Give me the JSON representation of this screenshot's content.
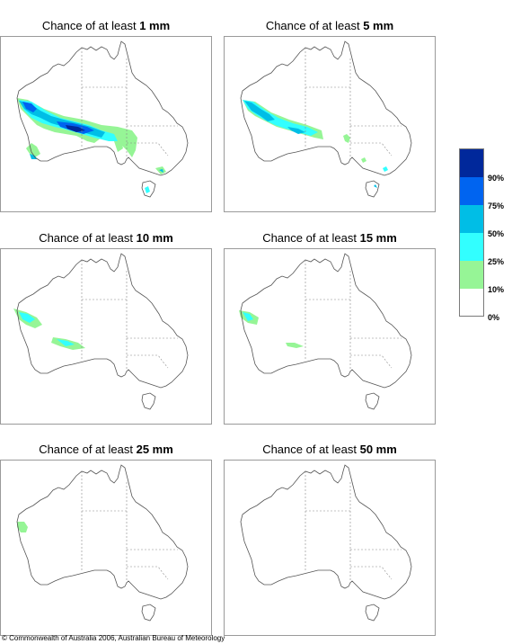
{
  "panels": [
    {
      "prefix": "Chance of at least ",
      "amount": "1 mm"
    },
    {
      "prefix": "Chance of at least ",
      "amount": "5 mm"
    },
    {
      "prefix": "Chance of at least ",
      "amount": "10 mm"
    },
    {
      "prefix": "Chance of at least ",
      "amount": "15 mm"
    },
    {
      "prefix": "Chance of at least ",
      "amount": "25 mm"
    },
    {
      "prefix": "Chance of at least ",
      "amount": "50 mm"
    }
  ],
  "legend": {
    "labels": [
      "90%",
      "75%",
      "50%",
      "25%",
      "10%",
      "0%"
    ],
    "colors": [
      "#00289b",
      "#0064f0",
      "#00bee6",
      "#32ffff",
      "#96f596",
      "#ffffff"
    ]
  },
  "copyright": "© Commonwealth of Australia 2006, Australian Bureau of Meteorology"
}
